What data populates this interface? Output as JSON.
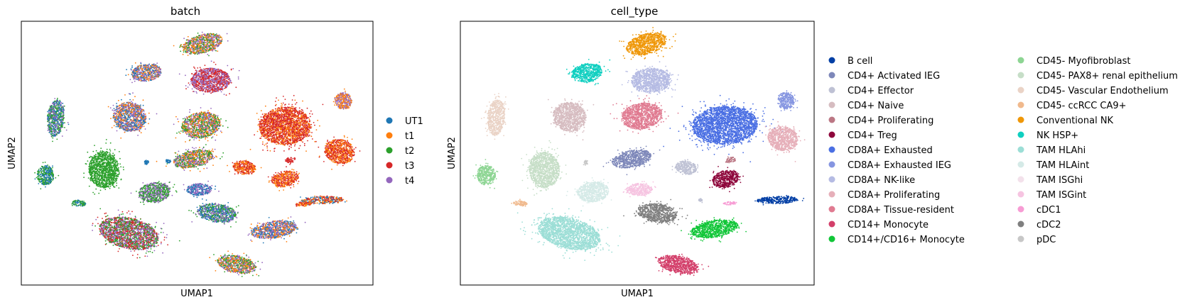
{
  "chart_data": [
    {
      "type": "scatter",
      "title": "batch",
      "xlabel": "UMAP1",
      "ylabel": "UMAP2",
      "grid": false,
      "legend_placement": "right",
      "xlim": [
        0,
        100
      ],
      "ylim": [
        0,
        100
      ],
      "legend": [
        {
          "label": "UT1",
          "color": "#1f77b4"
        },
        {
          "label": "t1",
          "color": "#ff7f0e"
        },
        {
          "label": "t2",
          "color": "#2ca02c"
        },
        {
          "label": "t3",
          "color": "#d62728"
        },
        {
          "label": "t4",
          "color": "#9467bd"
        }
      ],
      "clusters": [
        {
          "x": 51.5,
          "y": 91.4,
          "rx": 5.8,
          "ry": 3.5,
          "colors": [
            "#9467bd",
            "#ff7f0e",
            "#2ca02c"
          ]
        },
        {
          "x": 35.6,
          "y": 80.5,
          "rx": 4.3,
          "ry": 3.2,
          "colors": [
            "#1f77b4",
            "#ff7f0e",
            "#9467bd"
          ]
        },
        {
          "x": 53.8,
          "y": 77.6,
          "rx": 5.6,
          "ry": 4.6,
          "colors": [
            "#d62728",
            "#9467bd"
          ]
        },
        {
          "x": 9.8,
          "y": 63.2,
          "rx": 2.4,
          "ry": 6.9,
          "colors": [
            "#1f77b4",
            "#9467bd",
            "#2ca02c"
          ]
        },
        {
          "x": 30.8,
          "y": 63.8,
          "rx": 4.7,
          "ry": 5.5,
          "colors": [
            "#ff7f0e",
            "#9467bd",
            "#1f77b4"
          ]
        },
        {
          "x": 51.1,
          "y": 60.6,
          "rx": 5.6,
          "ry": 4.9,
          "colors": [
            "#2ca02c",
            "#9467bd",
            "#ff7f0e"
          ]
        },
        {
          "x": 75.0,
          "y": 60.3,
          "rx": 7.3,
          "ry": 7.2,
          "colors": [
            "#d62728",
            "#d62728",
            "#ff7f0e"
          ]
        },
        {
          "x": 91.6,
          "y": 69.8,
          "rx": 2.4,
          "ry": 3.2,
          "colors": [
            "#9467bd",
            "#ff7f0e"
          ]
        },
        {
          "x": 90.5,
          "y": 50.6,
          "rx": 4.3,
          "ry": 4.6,
          "colors": [
            "#d62728",
            "#ff7f0e"
          ]
        },
        {
          "x": 48.9,
          "y": 47.8,
          "rx": 5.8,
          "ry": 3.2,
          "colors": [
            "#9467bd",
            "#ff7f0e",
            "#2ca02c"
          ]
        },
        {
          "x": 23.5,
          "y": 43.7,
          "rx": 4.3,
          "ry": 6.9,
          "colors": [
            "#2ca02c"
          ]
        },
        {
          "x": 6.9,
          "y": 41.7,
          "rx": 2.4,
          "ry": 3.8,
          "colors": [
            "#1f77b4",
            "#2ca02c"
          ]
        },
        {
          "x": 63.4,
          "y": 44.5,
          "rx": 3.2,
          "ry": 2.6,
          "colors": [
            "#d62728",
            "#ff7f0e"
          ]
        },
        {
          "x": 75.0,
          "y": 40.2,
          "rx": 3.9,
          "ry": 2.9,
          "colors": [
            "#d62728",
            "#ff7f0e"
          ]
        },
        {
          "x": 37.9,
          "y": 35.1,
          "rx": 4.5,
          "ry": 3.8,
          "colors": [
            "#2ca02c",
            "#9467bd"
          ]
        },
        {
          "x": 50.6,
          "y": 36.2,
          "rx": 3.6,
          "ry": 2.3,
          "colors": [
            "#1f77b4",
            "#9467bd"
          ]
        },
        {
          "x": 55.6,
          "y": 27.3,
          "rx": 5.6,
          "ry": 3.5,
          "colors": [
            "#2ca02c",
            "#1f77b4",
            "#9467bd"
          ]
        },
        {
          "x": 30.6,
          "y": 19.6,
          "rx": 8.6,
          "ry": 5.8,
          "colors": [
            "#2ca02c",
            "#9467bd",
            "#d62728"
          ]
        },
        {
          "x": 71.8,
          "y": 21.0,
          "rx": 6.5,
          "ry": 3.2,
          "colors": [
            "#1f77b4",
            "#ff7f0e",
            "#9467bd"
          ]
        },
        {
          "x": 85.6,
          "y": 32.2,
          "rx": 6.0,
          "ry": 1.4,
          "colors": [
            "#d62728",
            "#1f77b4",
            "#ff7f0e"
          ]
        },
        {
          "x": 16.4,
          "y": 31.0,
          "rx": 1.9,
          "ry": 1.2,
          "colors": [
            "#2ca02c",
            "#1f77b4"
          ]
        },
        {
          "x": 61.2,
          "y": 7.8,
          "rx": 5.6,
          "ry": 3.2,
          "colors": [
            "#2ca02c",
            "#ff7f0e",
            "#9467bd"
          ]
        },
        {
          "x": 76.5,
          "y": 47.4,
          "rx": 1.5,
          "ry": 1.0,
          "colors": [
            "#d62728"
          ]
        },
        {
          "x": 80.2,
          "y": 30.7,
          "rx": 2.2,
          "ry": 0.9,
          "colors": [
            "#d62728",
            "#ff7f0e"
          ]
        },
        {
          "x": 35.6,
          "y": 46.5,
          "rx": 0.7,
          "ry": 0.8,
          "colors": [
            "#1f77b4"
          ]
        },
        {
          "x": 41.8,
          "y": 47.0,
          "rx": 0.7,
          "ry": 0.7,
          "colors": [
            "#1f77b4"
          ]
        }
      ]
    },
    {
      "type": "scatter",
      "title": "cell_type",
      "xlabel": "UMAP1",
      "ylabel": "UMAP2",
      "grid": false,
      "legend_placement": "right",
      "xlim": [
        0,
        100
      ],
      "ylim": [
        0,
        100
      ],
      "legend": [
        {
          "label": "B cell",
          "color": "#023fa5"
        },
        {
          "label": "CD4+ Activated IEG",
          "color": "#7d87b9"
        },
        {
          "label": "CD4+ Effector",
          "color": "#bec1d4"
        },
        {
          "label": "CD4+ Naive",
          "color": "#d6bcc0"
        },
        {
          "label": "CD4+ Proliferating",
          "color": "#bb7784"
        },
        {
          "label": "CD4+ Treg",
          "color": "#8e063b"
        },
        {
          "label": "CD8A+ Exhausted",
          "color": "#4a6fe3"
        },
        {
          "label": "CD8A+ Exhausted IEG",
          "color": "#8595e1"
        },
        {
          "label": "CD8A+ NK-like",
          "color": "#b5bbe3"
        },
        {
          "label": "CD8A+ Proliferating",
          "color": "#e6afb9"
        },
        {
          "label": "CD8A+ Tissue-resident",
          "color": "#e07b91"
        },
        {
          "label": "CD14+ Monocyte",
          "color": "#d33f6a"
        },
        {
          "label": "CD14+/CD16+ Monocyte",
          "color": "#11c638"
        },
        {
          "label": "CD45- Myofibroblast",
          "color": "#8dd593"
        },
        {
          "label": "CD45- PAX8+ renal epithelium",
          "color": "#c6dec7"
        },
        {
          "label": "CD45- Vascular Endothelium",
          "color": "#ead3c6"
        },
        {
          "label": "CD45- ccRCC CA9+",
          "color": "#f0b98d"
        },
        {
          "label": "Conventional NK",
          "color": "#ef9708"
        },
        {
          "label": "NK HSP+",
          "color": "#0fcfc0"
        },
        {
          "label": "TAM HLAhi",
          "color": "#9cded6"
        },
        {
          "label": "TAM HLAint",
          "color": "#d5eae7"
        },
        {
          "label": "TAM ISGhi",
          "color": "#f3e1eb"
        },
        {
          "label": "TAM ISGint",
          "color": "#f6c4e1"
        },
        {
          "label": "cDC1",
          "color": "#f79cd4"
        },
        {
          "label": "cDC2",
          "color": "#7f7f7f"
        },
        {
          "label": "pDC",
          "color": "#c7c7c7"
        }
      ],
      "clusters": [
        {
          "x": 52.6,
          "y": 91.4,
          "rx": 5.8,
          "ry": 3.8,
          "colors": [
            "#ef9708"
          ]
        },
        {
          "x": 35.8,
          "y": 80.5,
          "rx": 4.3,
          "ry": 3.5,
          "colors": [
            "#0fcfc0"
          ]
        },
        {
          "x": 53.9,
          "y": 77.6,
          "rx": 5.6,
          "ry": 4.6,
          "colors": [
            "#b5bbe3"
          ]
        },
        {
          "x": 10.1,
          "y": 63.5,
          "rx": 2.4,
          "ry": 6.9,
          "colors": [
            "#ead3c6"
          ]
        },
        {
          "x": 30.9,
          "y": 63.8,
          "rx": 4.7,
          "ry": 5.5,
          "colors": [
            "#d6bcc0"
          ]
        },
        {
          "x": 51.3,
          "y": 64.1,
          "rx": 5.8,
          "ry": 4.9,
          "colors": [
            "#e07b91"
          ]
        },
        {
          "x": 74.8,
          "y": 60.6,
          "rx": 9.2,
          "ry": 7.2,
          "colors": [
            "#4a6fe3"
          ]
        },
        {
          "x": 92.0,
          "y": 69.8,
          "rx": 2.4,
          "ry": 3.2,
          "colors": [
            "#8595e1"
          ]
        },
        {
          "x": 91.2,
          "y": 55.5,
          "rx": 4.3,
          "ry": 4.6,
          "colors": [
            "#e6afb9"
          ]
        },
        {
          "x": 48.4,
          "y": 47.8,
          "rx": 5.6,
          "ry": 3.2,
          "colors": [
            "#7d87b9"
          ]
        },
        {
          "x": 23.7,
          "y": 43.7,
          "rx": 4.3,
          "ry": 6.9,
          "colors": [
            "#c6dec7"
          ]
        },
        {
          "x": 7.3,
          "y": 41.7,
          "rx": 2.6,
          "ry": 3.8,
          "colors": [
            "#8dd593"
          ]
        },
        {
          "x": 63.8,
          "y": 44.5,
          "rx": 3.0,
          "ry": 2.6,
          "colors": [
            "#bec1d4"
          ]
        },
        {
          "x": 75.0,
          "y": 40.2,
          "rx": 3.9,
          "ry": 3.2,
          "colors": [
            "#8e063b"
          ]
        },
        {
          "x": 37.5,
          "y": 35.3,
          "rx": 4.5,
          "ry": 3.8,
          "colors": [
            "#d5eae7"
          ]
        },
        {
          "x": 50.6,
          "y": 36.2,
          "rx": 3.7,
          "ry": 2.3,
          "colors": [
            "#f6c4e1"
          ]
        },
        {
          "x": 55.6,
          "y": 27.3,
          "rx": 5.6,
          "ry": 3.5,
          "colors": [
            "#7f7f7f"
          ]
        },
        {
          "x": 30.8,
          "y": 19.6,
          "rx": 9.0,
          "ry": 5.8,
          "colors": [
            "#9cded6"
          ]
        },
        {
          "x": 71.8,
          "y": 21.3,
          "rx": 6.7,
          "ry": 3.2,
          "colors": [
            "#11c638"
          ]
        },
        {
          "x": 89.6,
          "y": 32.2,
          "rx": 5.8,
          "ry": 1.4,
          "colors": [
            "#023fa5"
          ]
        },
        {
          "x": 16.9,
          "y": 31.0,
          "rx": 2.0,
          "ry": 1.0,
          "colors": [
            "#f0b98d"
          ]
        },
        {
          "x": 61.5,
          "y": 7.8,
          "rx": 5.8,
          "ry": 3.2,
          "colors": [
            "#d33f6a"
          ]
        },
        {
          "x": 76.5,
          "y": 47.4,
          "rx": 1.5,
          "ry": 1.0,
          "colors": [
            "#bb7784"
          ]
        },
        {
          "x": 76.2,
          "y": 31.0,
          "rx": 2.0,
          "ry": 0.6,
          "colors": [
            "#f79cd4"
          ]
        },
        {
          "x": 35.6,
          "y": 46.5,
          "rx": 0.6,
          "ry": 0.8,
          "colors": [
            "#c7c7c7"
          ]
        },
        {
          "x": 67.9,
          "y": 32.2,
          "rx": 0.5,
          "ry": 0.5,
          "colors": [
            "#bec1d4"
          ]
        }
      ]
    }
  ]
}
